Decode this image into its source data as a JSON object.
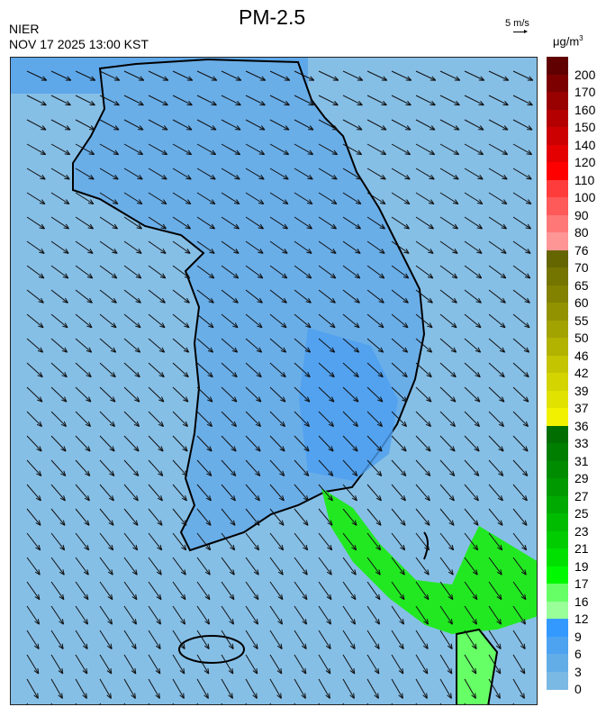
{
  "title": "PM-2.5",
  "source": "NIER",
  "timestamp": "NOV 17 2025 13:00 KST",
  "wind_reference": {
    "label": "5 m/s",
    "icon": "arrow-right-icon"
  },
  "unit": {
    "base": "μg/m",
    "sup": "3"
  },
  "legend": {
    "labels": [
      "200",
      "170",
      "160",
      "150",
      "140",
      "120",
      "110",
      "100",
      "90",
      "80",
      "76",
      "70",
      "65",
      "60",
      "55",
      "50",
      "46",
      "42",
      "39",
      "37",
      "36",
      "33",
      "31",
      "29",
      "27",
      "25",
      "23",
      "21",
      "19",
      "17",
      "16",
      "12",
      "9",
      "6",
      "3",
      "0"
    ],
    "colors": [
      "#600000",
      "#7c0000",
      "#990000",
      "#b40000",
      "#cc0000",
      "#e40000",
      "#ff0000",
      "#ff3c3c",
      "#ff5a5a",
      "#ff7878",
      "#ff9696",
      "#666600",
      "#747400",
      "#828200",
      "#929200",
      "#a2a200",
      "#b2b200",
      "#c4c400",
      "#d4d400",
      "#e2e200",
      "#f2f200",
      "#006e00",
      "#007e00",
      "#008c00",
      "#009a00",
      "#00aa00",
      "#00bc00",
      "#00cc00",
      "#00e000",
      "#00f800",
      "#66ff66",
      "#99ff99",
      "#3399ff",
      "#4da3f0",
      "#62ade8",
      "#7ab9e4",
      "#94c8e4"
    ]
  },
  "map": {
    "sea_color": "#86bfe6",
    "land_color": "#6aaee8",
    "high_color": "#3d96f0",
    "green_color": "#22e822",
    "wind_direction": "north-northwest"
  }
}
